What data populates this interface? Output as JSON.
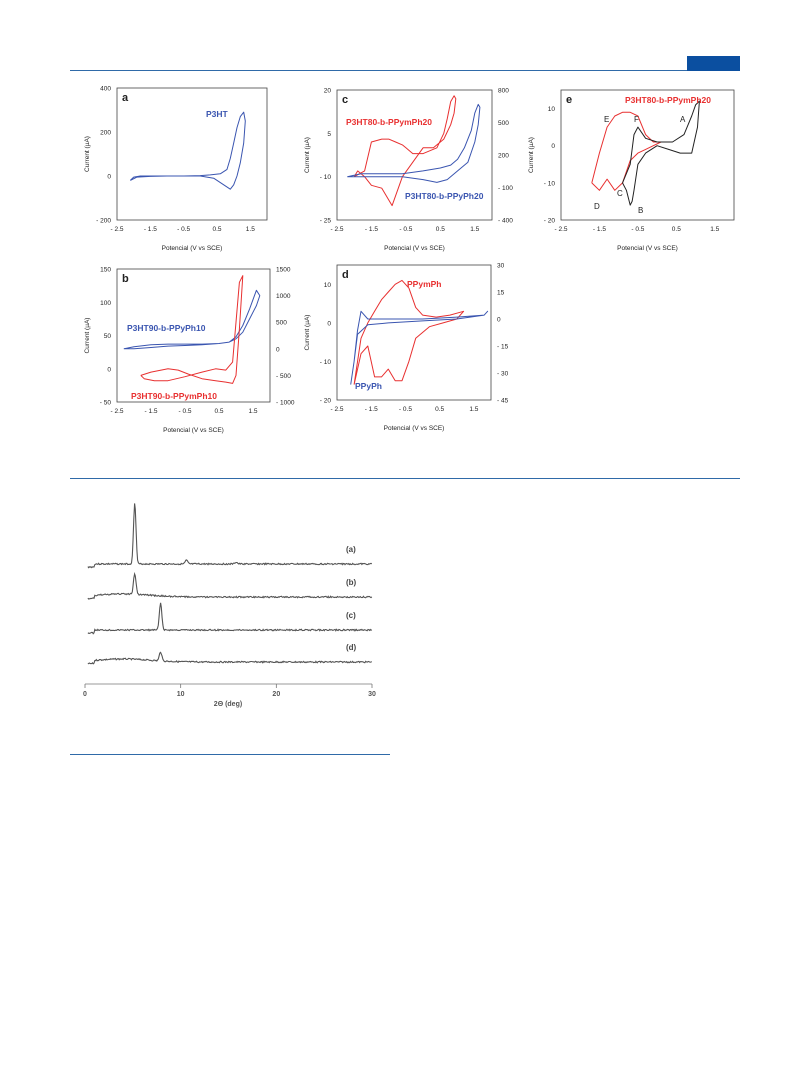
{
  "chart_data": [
    {
      "panel": "a",
      "type": "line",
      "ylabel": "Current (µA)",
      "xlabel": "Potencial (V vs SCE)",
      "xlim": [
        -2.5,
        2.0
      ],
      "xticks": [
        -2.5,
        -1.5,
        -0.5,
        0.5,
        1.5
      ],
      "ylim": [
        -200,
        400
      ],
      "yticks": [
        -200,
        0,
        200,
        400
      ],
      "series": [
        {
          "name": "P3HT",
          "color": "#3a55b0",
          "x": [
            -2.1,
            -2.0,
            -1.8,
            -1.5,
            -1.0,
            -0.5,
            0.0,
            0.3,
            0.6,
            0.8,
            0.9,
            1.0,
            1.1,
            1.2,
            1.3,
            1.35,
            1.3,
            1.2,
            1.1,
            1.0,
            0.9,
            0.7,
            0.4,
            0.0,
            -0.5,
            -1.0,
            -1.5,
            -1.9,
            -2.1
          ],
          "y": [
            -20,
            -5,
            0,
            0,
            0,
            0,
            2,
            5,
            10,
            30,
            80,
            150,
            220,
            270,
            290,
            250,
            150,
            60,
            0,
            -40,
            -60,
            -40,
            -10,
            0,
            0,
            0,
            -2,
            -5,
            -20
          ]
        }
      ]
    },
    {
      "panel": "b",
      "type": "line",
      "ylabel": "Current (µA)",
      "xlabel": "Potencial (V vs SCE)",
      "xlim": [
        -2.5,
        2.0
      ],
      "xticks": [
        -2.5,
        -1.5,
        -0.5,
        0.5,
        1.5
      ],
      "ylim": [
        -50,
        150
      ],
      "yticks": [
        -50,
        0,
        50,
        100,
        150
      ],
      "y2lim": [
        -1000,
        1500
      ],
      "y2ticks": [
        -1000,
        -500,
        0,
        500,
        1000,
        1500
      ],
      "series": [
        {
          "name": "P3HT90-b-PPyPh10",
          "color": "#3a55b0",
          "axis": "left",
          "x": [
            -2.3,
            -2.0,
            -1.5,
            -1.0,
            -0.5,
            0.0,
            0.5,
            0.8,
            1.0,
            1.2,
            1.4,
            1.6,
            1.7,
            1.6,
            1.4,
            1.2,
            1.0,
            0.8,
            0.5,
            0.0,
            -0.5,
            -1.0,
            -1.5,
            -2.0,
            -2.3
          ],
          "y": [
            30,
            33,
            36,
            37,
            37,
            37,
            38,
            40,
            48,
            65,
            90,
            118,
            110,
            95,
            75,
            55,
            45,
            40,
            38,
            36,
            35,
            34,
            32,
            30,
            30
          ]
        },
        {
          "name": "P3HT90-b-PPymPh10",
          "color": "#e83030",
          "axis": "left",
          "x": [
            -1.8,
            -1.5,
            -1.0,
            -0.7,
            -0.4,
            0.0,
            0.4,
            0.7,
            0.9,
            1.0,
            1.1,
            1.2,
            1.1,
            1.0,
            0.9,
            0.7,
            0.4,
            0.0,
            -0.5,
            -1.0,
            -1.4,
            -1.7,
            -1.8
          ],
          "y": [
            -10,
            -5,
            0,
            -2,
            -8,
            -15,
            -18,
            -20,
            -22,
            -10,
            60,
            140,
            130,
            70,
            10,
            -2,
            0,
            -5,
            -12,
            -18,
            -18,
            -15,
            -10
          ]
        }
      ]
    },
    {
      "panel": "c",
      "type": "line",
      "ylabel": "Current (µA)",
      "xlabel": "Potencial (V vs SCE)",
      "xlim": [
        -2.5,
        2.0
      ],
      "xticks": [
        -2.5,
        -1.5,
        -0.5,
        0.5,
        1.5
      ],
      "ylim": [
        -25,
        20
      ],
      "yticks": [
        -25,
        -10,
        5,
        20
      ],
      "y2lim": [
        -400,
        800
      ],
      "y2ticks": [
        -400,
        -100,
        200,
        500,
        800
      ],
      "series": [
        {
          "name": "P3HT80-b-PPymPh20",
          "color": "#e83030",
          "axis": "left",
          "x": [
            -2.0,
            -1.7,
            -1.5,
            -1.2,
            -1.0,
            -0.8,
            -0.6,
            -0.5,
            -0.3,
            0.0,
            0.4,
            0.6,
            0.7,
            0.8,
            0.9,
            0.95,
            0.9,
            0.8,
            0.6,
            0.3,
            0.0,
            -0.3,
            -0.6,
            -0.9,
            -1.2,
            -1.5,
            -1.7,
            -1.9,
            -2.0
          ],
          "y": [
            -10,
            -8,
            2,
            3,
            3,
            2,
            1,
            0,
            -2,
            -2,
            0,
            5,
            10,
            16,
            18,
            17,
            12,
            8,
            3,
            0,
            0,
            -5,
            -10,
            -20,
            -14,
            -13,
            -10,
            -8,
            -10
          ]
        },
        {
          "name": "P3HT80-b-PPyPh20",
          "color": "#3a55b0",
          "axis": "left",
          "x": [
            -2.2,
            -1.8,
            -1.2,
            -0.6,
            0.0,
            0.5,
            0.8,
            1.0,
            1.2,
            1.4,
            1.5,
            1.6,
            1.65,
            1.6,
            1.5,
            1.3,
            1.0,
            0.7,
            0.4,
            0.0,
            -0.6,
            -1.2,
            -1.8,
            -2.2
          ],
          "y": [
            -10,
            -9,
            -9,
            -9,
            -8,
            -7,
            -6,
            -4,
            0,
            6,
            12,
            15,
            14,
            8,
            2,
            -5,
            -8,
            -11,
            -12,
            -11,
            -10,
            -10,
            -10,
            -10
          ]
        }
      ]
    },
    {
      "panel": "d",
      "type": "line",
      "ylabel": "Current (µA)",
      "xlabel": "Potencial (V vs SCE)",
      "xlim": [
        -2.5,
        2.0
      ],
      "xticks": [
        -2.5,
        -1.5,
        -0.5,
        0.5,
        1.5
      ],
      "ylim": [
        -20,
        15
      ],
      "yticks": [
        -20,
        -10,
        0,
        10
      ],
      "y2lim": [
        -45,
        30
      ],
      "y2ticks": [
        -45,
        -30,
        -15,
        0,
        15,
        30
      ],
      "series": [
        {
          "name": "PPymPh",
          "color": "#e83030",
          "axis": "left",
          "x": [
            -2.0,
            -1.8,
            -1.6,
            -1.4,
            -1.2,
            -1.0,
            -0.8,
            -0.6,
            -0.4,
            -0.2,
            0.0,
            0.4,
            0.8,
            1.2,
            1.0,
            0.6,
            0.2,
            -0.2,
            -0.4,
            -0.6,
            -0.8,
            -1.0,
            -1.2,
            -1.4,
            -1.6,
            -1.8,
            -2.0
          ],
          "y": [
            -16,
            -4,
            0,
            3,
            6,
            8,
            10,
            11,
            9,
            4,
            2,
            1.5,
            2,
            3,
            1,
            0,
            -1,
            -4,
            -10,
            -15,
            -15,
            -12,
            -14,
            -14,
            -6,
            -8,
            -16
          ]
        },
        {
          "name": "PPyPh",
          "color": "#3a55b0",
          "axis": "left",
          "x": [
            -2.1,
            -2.0,
            -1.9,
            -1.8,
            -1.6,
            -1.0,
            0.0,
            1.0,
            1.8,
            1.9,
            1.8,
            1.0,
            0.0,
            -1.0,
            -1.6,
            -1.9,
            -2.0,
            -2.1
          ],
          "y": [
            -16,
            -10,
            -2,
            3,
            1,
            1,
            1,
            1.5,
            2,
            3,
            2,
            1,
            0.5,
            0,
            -0.5,
            -3,
            -10,
            -16
          ]
        }
      ]
    },
    {
      "panel": "e",
      "type": "line",
      "ylabel": "Current (µA)",
      "xlabel": "Potencial (V vs SCE)",
      "xlim": [
        -2.5,
        2.0
      ],
      "xticks": [
        -2.5,
        -1.5,
        -0.5,
        0.5,
        1.5
      ],
      "ylim": [
        -20,
        15
      ],
      "yticks": [
        -20,
        -10,
        0,
        10
      ],
      "series": [
        {
          "name": "P3HT80-b-PPymPh20",
          "color": "#e83030",
          "axis": "left",
          "x": [
            -1.7,
            -1.5,
            -1.3,
            -1.1,
            -0.9,
            -0.7,
            -0.5,
            -0.3,
            -0.1,
            0.1,
            -0.1,
            -0.3,
            -0.5,
            -0.7,
            -0.9,
            -1.1,
            -1.3,
            -1.5,
            -1.7
          ],
          "y": [
            -10,
            -2,
            5,
            8,
            9,
            9,
            8,
            3,
            1,
            1,
            0,
            -1,
            -2,
            -4,
            -10,
            -12,
            -9,
            -12,
            -10
          ]
        },
        {
          "name": "",
          "color": "#222222",
          "axis": "left",
          "x": [
            -0.9,
            -0.7,
            -0.6,
            -0.5,
            -0.3,
            0.0,
            0.4,
            0.7,
            0.9,
            1.0,
            1.1,
            1.05,
            0.9,
            0.6,
            0.3,
            0.0,
            -0.3,
            -0.5,
            -0.6,
            -0.65,
            -0.7,
            -0.8,
            -0.9
          ],
          "y": [
            -10,
            -5,
            3,
            5,
            2,
            1,
            1,
            3,
            8,
            11,
            12,
            5,
            -2,
            -2,
            -1,
            0,
            -2,
            -5,
            -12,
            -15,
            -16,
            -12,
            -10
          ]
        }
      ]
    },
    {
      "panel": "xrd",
      "type": "line",
      "xlabel": "2Θ (deg)",
      "xlim": [
        0,
        30
      ],
      "xticks": [
        0,
        10,
        20,
        30
      ],
      "series": [
        {
          "name": "(a)",
          "color": "#555555",
          "peaks": [
            [
              5.2,
              1.0
            ],
            [
              10.6,
              0.06
            ],
            [
              15.8,
              0.03
            ]
          ]
        },
        {
          "name": "(b)",
          "color": "#555555",
          "peaks": [
            [
              5.2,
              0.35
            ]
          ]
        },
        {
          "name": "(c)",
          "color": "#555555",
          "peaks": [
            [
              7.9,
              0.45
            ]
          ]
        },
        {
          "name": "(d)",
          "color": "#555555",
          "peaks": [
            [
              7.9,
              0.15
            ]
          ]
        }
      ]
    }
  ],
  "panel_labels": {
    "a": "a",
    "b": "b",
    "c": "c",
    "d": "d",
    "e": "e"
  },
  "annotations": {
    "a_series": "P3HT",
    "b_blue": "P3HT90-b-PPyPh10",
    "b_red": "P3HT90-b-PPymPh10",
    "c_red": "P3HT80-b-PPymPh20",
    "c_blue": "P3HT80-b-PPyPh20",
    "d_red": "PPymPh",
    "d_blue": "PPyPh",
    "e_red": "P3HT80-b-PPymPh20",
    "e_points": [
      "A",
      "B",
      "C",
      "D",
      "E",
      "F"
    ]
  },
  "xrd_labels": [
    "(a)",
    "(b)",
    "(c)",
    "(d)"
  ]
}
